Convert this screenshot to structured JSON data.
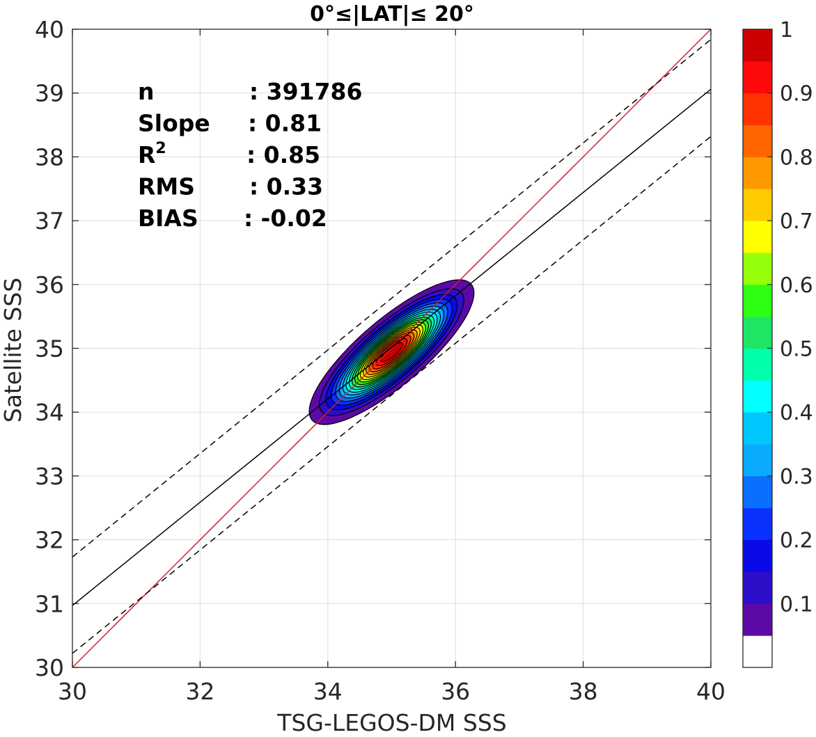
{
  "chart_data": {
    "type": "heatmap",
    "title": "0°≤|LAT|≤ 20°",
    "xlabel": "TSG-LEGOS-DM SSS",
    "ylabel": "Satellite SSS",
    "xlim": [
      30,
      40
    ],
    "ylim": [
      30,
      40
    ],
    "xticks": [
      "30",
      "32",
      "34",
      "36",
      "38",
      "40"
    ],
    "yticks": [
      "30",
      "31",
      "32",
      "33",
      "34",
      "35",
      "36",
      "37",
      "38",
      "39",
      "40"
    ],
    "grid": true,
    "stats": [
      {
        "label": "n",
        "value": ": 391786"
      },
      {
        "label": "Slope",
        "value": ": 0.81"
      },
      {
        "label": "R",
        "sup": "2",
        "value": ": 0.85"
      },
      {
        "label": "RMS",
        "value": ": 0.33"
      },
      {
        "label": "BIAS",
        "value": ": -0.02"
      }
    ],
    "lines": [
      {
        "kind": "identity",
        "color": "#e8141b",
        "x": [
          30,
          40
        ],
        "y": [
          30,
          40
        ]
      },
      {
        "kind": "regression",
        "color": "#000000",
        "x": [
          30,
          40
        ],
        "y": [
          30.97,
          39.06
        ]
      },
      {
        "kind": "regression-upper",
        "color": "#000000",
        "dash": true,
        "x": [
          30,
          40
        ],
        "y": [
          31.73,
          39.84
        ]
      },
      {
        "kind": "regression-lower",
        "color": "#000000",
        "dash": true,
        "x": [
          30,
          40
        ],
        "y": [
          30.22,
          38.32
        ]
      }
    ],
    "density": {
      "center": [
        35.0,
        34.94
      ],
      "major_axis_deg": 40.5,
      "sigma_major": 0.67,
      "sigma_minor": 0.21,
      "min_level": 0.05
    },
    "colorbar": {
      "levels": [
        0,
        0.05,
        0.1,
        0.15,
        0.2,
        0.25,
        0.3,
        0.35,
        0.4,
        0.45,
        0.5,
        0.55,
        0.6,
        0.65,
        0.7,
        0.75,
        0.8,
        0.85,
        0.9,
        0.95,
        1.0
      ],
      "colors": [
        "#ffffff",
        "#5b0aa6",
        "#2d0ec8",
        "#0a0ae8",
        "#0a32ff",
        "#0a6eff",
        "#0aaaff",
        "#00c8ff",
        "#00ffff",
        "#00ffaa",
        "#1ee664",
        "#2dff14",
        "#96ff0a",
        "#ffff00",
        "#ffcc00",
        "#ff9900",
        "#ff6600",
        "#ff3300",
        "#ff0a0a",
        "#cc0000",
        "#800000"
      ],
      "ticks": [
        "0.1",
        "0.2",
        "0.3",
        "0.4",
        "0.5",
        "0.6",
        "0.7",
        "0.8",
        "0.9",
        "1"
      ],
      "tick_values": [
        0.1,
        0.2,
        0.3,
        0.4,
        0.5,
        0.6,
        0.7,
        0.8,
        0.9,
        1.0
      ]
    }
  }
}
